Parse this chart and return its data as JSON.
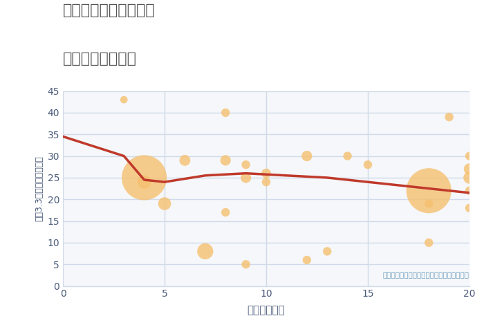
{
  "title_line1": "愛知県碧南市伊勢町の",
  "title_line2": "駅距離別土地価格",
  "xlabel": "駅距離（分）",
  "ylabel": "坪（3.3㎡）単価（万円）",
  "xlim": [
    0,
    20
  ],
  "ylim": [
    0,
    45
  ],
  "xticks": [
    0,
    5,
    10,
    15,
    20
  ],
  "yticks": [
    0,
    5,
    10,
    15,
    20,
    25,
    30,
    35,
    40,
    45
  ],
  "background_color": "#ffffff",
  "plot_bg_color": "#f5f7fa",
  "grid_color": "#d0dae8",
  "scatter_color": "#f5c070",
  "scatter_alpha": 0.8,
  "line_color": "#c0392b",
  "line_width": 2.5,
  "tick_color": "#4a5a7a",
  "label_color": "#4a5a7a",
  "title_color": "#555555",
  "annotation": "円の大きさは、取引のあった物件面積を示す",
  "annotation_color": "#6699bb",
  "scatter_x": [
    3,
    4,
    4,
    5,
    6,
    7,
    8,
    8,
    8,
    9,
    9,
    9,
    10,
    10,
    12,
    12,
    13,
    14,
    15,
    18,
    18,
    18,
    19,
    20,
    20,
    20,
    20,
    20
  ],
  "scatter_y": [
    43,
    25,
    24,
    19,
    29,
    8,
    40,
    17,
    29,
    5,
    25,
    28,
    26,
    24,
    30,
    6,
    8,
    30,
    28,
    10,
    22,
    19,
    39,
    30,
    27,
    25,
    22,
    18
  ],
  "scatter_size": [
    60,
    2200,
    200,
    180,
    130,
    280,
    80,
    80,
    120,
    80,
    120,
    80,
    100,
    80,
    120,
    80,
    80,
    80,
    80,
    80,
    2200,
    80,
    80,
    80,
    140,
    160,
    80,
    80
  ],
  "line_x": [
    0,
    3,
    4,
    5,
    7,
    9,
    11,
    13,
    15,
    17,
    18,
    20
  ],
  "line_y": [
    34.5,
    30,
    24.5,
    24,
    25.5,
    26,
    25.5,
    25,
    24,
    23,
    22.5,
    21.5
  ]
}
